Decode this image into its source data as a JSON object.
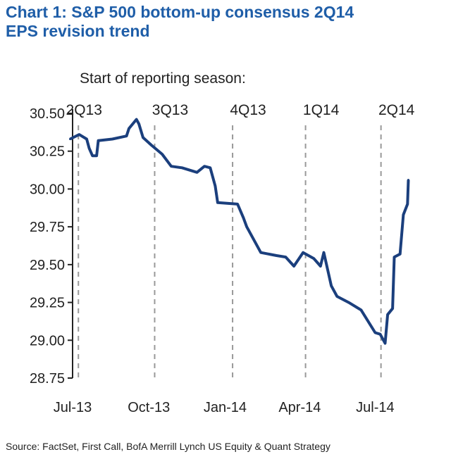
{
  "chart_data": {
    "type": "line",
    "title_line1": "Chart 1: S&P 500 bottom-up consensus  2Q14",
    "title_line2": "EPS revision trend",
    "annotation": "Start of reporting season:",
    "source": "Source: FactSet, First Call, BofA Merrill Lynch US Equity & Quant Strategy",
    "xlabel": "",
    "ylabel": "",
    "ylim": [
      28.75,
      30.5
    ],
    "xlim": [
      "2013-06-28",
      "2014-08-25"
    ],
    "grid": false,
    "y_ticks": [
      "30.50",
      "30.25",
      "30.00",
      "29.75",
      "29.50",
      "29.25",
      "29.00",
      "28.75"
    ],
    "x_ticks": [
      {
        "label": "Jul-13",
        "date": "2013-07-01"
      },
      {
        "label": "Oct-13",
        "date": "2013-10-01"
      },
      {
        "label": "Jan-14",
        "date": "2014-01-01"
      },
      {
        "label": "Apr-14",
        "date": "2014-04-01"
      },
      {
        "label": "Jul-14",
        "date": "2014-07-01"
      }
    ],
    "reporting_seasons": [
      {
        "label": "2Q13",
        "date": "2013-07-08"
      },
      {
        "label": "3Q13",
        "date": "2013-10-08"
      },
      {
        "label": "4Q13",
        "date": "2014-01-10"
      },
      {
        "label": "1Q14",
        "date": "2014-04-08"
      },
      {
        "label": "2Q14",
        "date": "2014-07-08"
      }
    ],
    "line_color": "#1b3f7d",
    "series": [
      {
        "x": [
          "2013-06-28",
          "2013-07-09",
          "2013-07-18",
          "2013-07-21",
          "2013-07-25",
          "2013-07-30",
          "2013-08-01",
          "2013-08-18",
          "2013-09-04",
          "2013-09-07",
          "2013-09-16",
          "2013-09-19",
          "2013-09-24",
          "2013-10-04",
          "2013-10-17",
          "2013-10-28",
          "2013-11-10",
          "2013-11-28",
          "2013-12-07",
          "2013-12-14",
          "2013-12-20",
          "2013-12-23",
          "2014-01-16",
          "2014-01-23",
          "2014-01-27",
          "2014-02-13",
          "2014-03-04",
          "2014-03-15",
          "2014-03-25",
          "2014-04-05",
          "2014-04-18",
          "2014-04-26",
          "2014-04-30",
          "2014-05-09",
          "2014-05-16",
          "2014-05-30",
          "2014-06-14",
          "2014-07-01",
          "2014-07-07",
          "2014-07-13",
          "2014-07-16",
          "2014-07-22",
          "2014-07-24",
          "2014-07-31",
          "2014-08-04",
          "2014-08-09",
          "2014-08-10"
        ],
        "y": [
          30.33,
          30.36,
          30.33,
          30.27,
          30.22,
          30.22,
          30.32,
          30.33,
          30.35,
          30.4,
          30.46,
          30.43,
          30.34,
          30.29,
          30.23,
          30.15,
          30.14,
          30.11,
          30.15,
          30.14,
          30.02,
          29.91,
          29.9,
          29.81,
          29.75,
          29.58,
          29.56,
          29.55,
          29.49,
          29.58,
          29.54,
          29.49,
          29.58,
          29.36,
          29.29,
          29.25,
          29.2,
          29.05,
          29.04,
          28.98,
          29.17,
          29.21,
          29.55,
          29.57,
          29.83,
          29.9,
          30.06
        ]
      }
    ]
  }
}
